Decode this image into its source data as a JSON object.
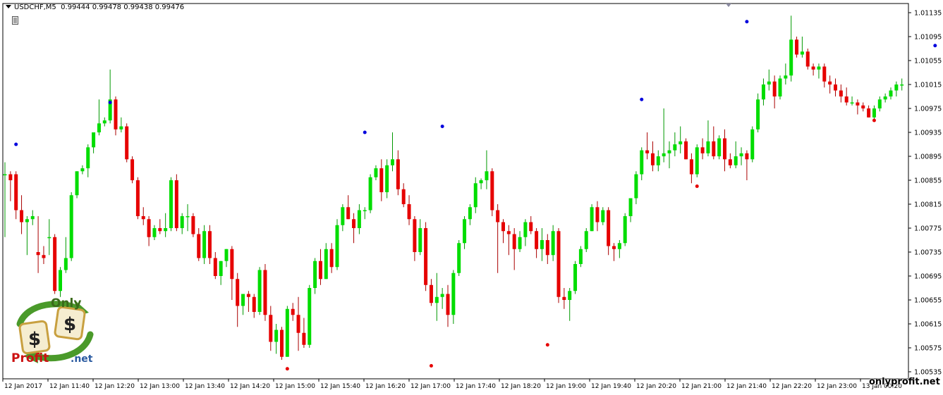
{
  "header": {
    "symbol": "USDCHF,M5",
    "ohlc": "0.99444 0.99478 0.99438 0.99476"
  },
  "watermark": "onlyprofit.net",
  "logo": {
    "text_top": "Only",
    "text_bottom_left": "Profit",
    "text_bottom_right": ".net",
    "symbol": "$"
  },
  "colors": {
    "bull": "#00dd00",
    "bear": "#e60000",
    "fractal_up": "#0000dd",
    "fractal_down": "#e60000",
    "axis": "#000000"
  },
  "chart_data": {
    "type": "candlestick",
    "title": "USDCHF,M5",
    "y_ticks": [
      "1.01135",
      "1.01095",
      "1.01055",
      "1.01015",
      "1.00975",
      "1.00935",
      "1.00895",
      "1.00855",
      "1.00815",
      "1.00775",
      "1.00735",
      "1.00695",
      "1.00655",
      "1.00615",
      "1.00575",
      "1.00535"
    ],
    "x_ticks": [
      "12 Jan 2017",
      "12 Jan 11:40",
      "12 Jan 12:20",
      "12 Jan 13:00",
      "12 Jan 13:40",
      "12 Jan 14:20",
      "12 Jan 15:00",
      "12 Jan 15:40",
      "12 Jan 16:20",
      "12 Jan 17:00",
      "12 Jan 17:40",
      "12 Jan 18:20",
      "12 Jan 19:00",
      "12 Jan 19:40",
      "12 Jan 20:20",
      "12 Jan 21:00",
      "12 Jan 21:40",
      "12 Jan 22:20",
      "12 Jan 23:00",
      "13 Jan 00:20"
    ],
    "ylim": [
      1.00525,
      1.01145
    ],
    "candles": [
      [
        1.00865,
        1.00885,
        1.0076,
        1.00865
      ],
      [
        1.00865,
        1.0087,
        1.0082,
        1.00855
      ],
      [
        1.00865,
        1.0087,
        1.0079,
        1.00805
      ],
      [
        1.00805,
        1.0083,
        1.00765,
        1.00785
      ],
      [
        1.00785,
        1.00795,
        1.0073,
        1.0079
      ],
      [
        1.0079,
        1.00805,
        1.0078,
        1.00795
      ],
      [
        1.00735,
        1.00795,
        1.007,
        1.0073
      ],
      [
        1.0073,
        1.00745,
        1.00715,
        1.00725
      ],
      [
        1.0076,
        1.0079,
        1.0073,
        1.0076
      ],
      [
        1.0076,
        1.00765,
        1.00665,
        1.0067
      ],
      [
        1.0067,
        1.0071,
        1.0066,
        1.00705
      ],
      [
        1.00705,
        1.0076,
        1.007,
        1.00725
      ],
      [
        1.00725,
        1.00835,
        1.0072,
        1.0083
      ],
      [
        1.0083,
        1.0087,
        1.00825,
        1.0087
      ],
      [
        1.0087,
        1.0088,
        1.00865,
        1.00875
      ],
      [
        1.00875,
        1.00915,
        1.0086,
        1.0091
      ],
      [
        1.0091,
        1.00935,
        1.009,
        1.00935
      ],
      [
        1.00935,
        1.0099,
        1.0093,
        1.0095
      ],
      [
        1.0095,
        1.0096,
        1.00945,
        1.00955
      ],
      [
        1.00955,
        1.0104,
        1.0095,
        1.0099
      ],
      [
        1.0099,
        1.00995,
        1.0093,
        1.0094
      ],
      [
        1.0094,
        1.0096,
        1.00935,
        1.00945
      ],
      [
        1.00945,
        1.0095,
        1.00885,
        1.0089
      ],
      [
        1.0089,
        1.00895,
        1.0085,
        1.00855
      ],
      [
        1.00855,
        1.0086,
        1.0079,
        1.00795
      ],
      [
        1.00795,
        1.0081,
        1.0078,
        1.0079
      ],
      [
        1.0079,
        1.00795,
        1.00745,
        1.0076
      ],
      [
        1.0076,
        1.0078,
        1.00755,
        1.00775
      ],
      [
        1.00775,
        1.0079,
        1.00765,
        1.0077
      ],
      [
        1.0077,
        1.008,
        1.0076,
        1.00775
      ],
      [
        1.00775,
        1.0086,
        1.0077,
        1.00855
      ],
      [
        1.00855,
        1.00865,
        1.0077,
        1.00775
      ],
      [
        1.00775,
        1.008,
        1.00765,
        1.00795
      ],
      [
        1.00795,
        1.00815,
        1.0077,
        1.00795
      ],
      [
        1.00795,
        1.008,
        1.0076,
        1.00765
      ],
      [
        1.00765,
        1.00775,
        1.0072,
        1.00725
      ],
      [
        1.00725,
        1.0078,
        1.00715,
        1.0077
      ],
      [
        1.0077,
        1.0078,
        1.00715,
        1.00725
      ],
      [
        1.00725,
        1.00735,
        1.0069,
        1.00695
      ],
      [
        1.00695,
        1.0072,
        1.0068,
        1.0072
      ],
      [
        1.0072,
        1.0074,
        1.0071,
        1.0074
      ],
      [
        1.0074,
        1.00745,
        1.00655,
        1.0069
      ],
      [
        1.0069,
        1.007,
        1.0061,
        1.00645
      ],
      [
        1.00645,
        1.00665,
        1.0063,
        1.00665
      ],
      [
        1.00665,
        1.0067,
        1.00635,
        1.0066
      ],
      [
        1.0066,
        1.00665,
        1.00625,
        1.00635
      ],
      [
        1.00635,
        1.0071,
        1.0063,
        1.00705
      ],
      [
        1.00705,
        1.00715,
        1.0062,
        1.0063
      ],
      [
        1.0063,
        1.00645,
        1.0057,
        1.00585
      ],
      [
        1.00585,
        1.00615,
        1.00565,
        1.00605
      ],
      [
        1.00605,
        1.0061,
        1.00555,
        1.0056
      ],
      [
        1.0056,
        1.00645,
        1.0056,
        1.0064
      ],
      [
        1.0064,
        1.0065,
        1.0062,
        1.0063
      ],
      [
        1.0063,
        1.0066,
        1.0057,
        1.006
      ],
      [
        1.006,
        1.00625,
        1.00575,
        1.0058
      ],
      [
        1.0058,
        1.0068,
        1.00575,
        1.00675
      ],
      [
        1.00675,
        1.00725,
        1.00665,
        1.0072
      ],
      [
        1.0072,
        1.0074,
        1.0068,
        1.0069
      ],
      [
        1.0069,
        1.0075,
        1.0069,
        1.0074
      ],
      [
        1.0074,
        1.0075,
        1.007,
        1.0071
      ],
      [
        1.0071,
        1.0079,
        1.00705,
        1.0078
      ],
      [
        1.0078,
        1.00815,
        1.0077,
        1.0081
      ],
      [
        1.0081,
        1.0083,
        1.0079,
        1.0079
      ],
      [
        1.0079,
        1.008,
        1.0075,
        1.00775
      ],
      [
        1.00775,
        1.00815,
        1.00765,
        1.00805
      ],
      [
        1.00805,
        1.0081,
        1.0079,
        1.00805
      ],
      [
        1.00805,
        1.00865,
        1.008,
        1.0086
      ],
      [
        1.0086,
        1.0088,
        1.00855,
        1.00875
      ],
      [
        1.00875,
        1.0089,
        1.0082,
        1.00835
      ],
      [
        1.00835,
        1.0089,
        1.00825,
        1.0088
      ],
      [
        1.0088,
        1.00935,
        1.0087,
        1.0089
      ],
      [
        1.0089,
        1.00905,
        1.0083,
        1.0084
      ],
      [
        1.0084,
        1.0085,
        1.0081,
        1.00815
      ],
      [
        1.00815,
        1.0083,
        1.0078,
        1.0079
      ],
      [
        1.0079,
        1.00795,
        1.0072,
        1.00735
      ],
      [
        1.00735,
        1.0079,
        1.0073,
        1.00775
      ],
      [
        1.00775,
        1.00785,
        1.0067,
        1.0068
      ],
      [
        1.0068,
        1.0069,
        1.00645,
        1.0065
      ],
      [
        1.0065,
        1.007,
        1.0062,
        1.0066
      ],
      [
        1.0066,
        1.00675,
        1.0064,
        1.00665
      ],
      [
        1.00665,
        1.0068,
        1.0061,
        1.0063
      ],
      [
        1.0063,
        1.00705,
        1.00615,
        1.007
      ],
      [
        1.007,
        1.00755,
        1.00695,
        1.0075
      ],
      [
        1.0075,
        1.00795,
        1.0074,
        1.0079
      ],
      [
        1.0079,
        1.00815,
        1.0078,
        1.0081
      ],
      [
        1.0081,
        1.0086,
        1.008,
        1.0085
      ],
      [
        1.0085,
        1.00858,
        1.0084,
        1.00855
      ],
      [
        1.00855,
        1.00905,
        1.0084,
        1.0087
      ],
      [
        1.0087,
        1.00875,
        1.00795,
        1.00805
      ],
      [
        1.00805,
        1.00815,
        1.007,
        1.00785
      ],
      [
        1.00785,
        1.0079,
        1.0075,
        1.0077
      ],
      [
        1.0077,
        1.0078,
        1.0073,
        1.00765
      ],
      [
        1.00765,
        1.00775,
        1.00705,
        1.0074
      ],
      [
        1.0074,
        1.0077,
        1.00735,
        1.0076
      ],
      [
        1.0076,
        1.0079,
        1.00745,
        1.00785
      ],
      [
        1.00785,
        1.00795,
        1.00765,
        1.0077
      ],
      [
        1.0077,
        1.00775,
        1.00725,
        1.0074
      ],
      [
        1.0074,
        1.00775,
        1.0072,
        1.00755
      ],
      [
        1.00755,
        1.00765,
        1.00715,
        1.0073
      ],
      [
        1.0073,
        1.0078,
        1.0072,
        1.0077
      ],
      [
        1.0077,
        1.00775,
        1.0065,
        1.0066
      ],
      [
        1.0066,
        1.00675,
        1.0064,
        1.00655
      ],
      [
        1.00655,
        1.00675,
        1.0062,
        1.0067
      ],
      [
        1.0067,
        1.0072,
        1.00665,
        1.00715
      ],
      [
        1.00715,
        1.00745,
        1.0071,
        1.0074
      ],
      [
        1.0074,
        1.00775,
        1.00735,
        1.0077
      ],
      [
        1.0077,
        1.00815,
        1.0077,
        1.0081
      ],
      [
        1.0081,
        1.0082,
        1.0077,
        1.00785
      ],
      [
        1.00785,
        1.0081,
        1.0078,
        1.00805
      ],
      [
        1.00805,
        1.0081,
        1.0073,
        1.00745
      ],
      [
        1.00745,
        1.0075,
        1.0072,
        1.0074
      ],
      [
        1.0074,
        1.00755,
        1.00725,
        1.0075
      ],
      [
        1.0075,
        1.008,
        1.00745,
        1.00795
      ],
      [
        1.00795,
        1.00825,
        1.00785,
        1.00825
      ],
      [
        1.00825,
        1.0087,
        1.00815,
        1.00865
      ],
      [
        1.00865,
        1.0091,
        1.00855,
        1.00905
      ],
      [
        1.00905,
        1.00935,
        1.0089,
        1.009
      ],
      [
        1.009,
        1.0092,
        1.0087,
        1.0088
      ],
      [
        1.0088,
        1.00905,
        1.0087,
        1.00895
      ],
      [
        1.00895,
        1.00975,
        1.00885,
        1.009
      ],
      [
        1.009,
        1.0092,
        1.00875,
        1.00905
      ],
      [
        1.00905,
        1.00935,
        1.00895,
        1.00915
      ],
      [
        1.00915,
        1.00945,
        1.009,
        1.0092
      ],
      [
        1.0092,
        1.00925,
        1.0089,
        1.0089
      ],
      [
        1.0089,
        1.009,
        1.0085,
        1.00865
      ],
      [
        1.00865,
        1.00915,
        1.0086,
        1.0091
      ],
      [
        1.0091,
        1.00925,
        1.0089,
        1.009
      ],
      [
        1.009,
        1.00955,
        1.00895,
        1.0092
      ],
      [
        1.0092,
        1.00945,
        1.0089,
        1.00895
      ],
      [
        1.00895,
        1.0093,
        1.0089,
        1.00925
      ],
      [
        1.00925,
        1.0094,
        1.0087,
        1.0089
      ],
      [
        1.0089,
        1.009,
        1.00875,
        1.0088
      ],
      [
        1.0088,
        1.0092,
        1.00875,
        1.00895
      ],
      [
        1.00895,
        1.0091,
        1.0088,
        1.009
      ],
      [
        1.009,
        1.00905,
        1.00855,
        1.0089
      ],
      [
        1.0089,
        1.00945,
        1.00885,
        1.0094
      ],
      [
        1.0094,
        1.01,
        1.00935,
        1.0099
      ],
      [
        1.0099,
        1.01025,
        1.0098,
        1.01015
      ],
      [
        1.01015,
        1.0104,
        1.01005,
        1.0102
      ],
      [
        1.0102,
        1.0103,
        1.00975,
        1.00995
      ],
      [
        1.00995,
        1.0103,
        1.0099,
        1.01025
      ],
      [
        1.01025,
        1.0105,
        1.01015,
        1.0103
      ],
      [
        1.0103,
        1.0113,
        1.0102,
        1.0109
      ],
      [
        1.0109,
        1.01095,
        1.0106,
        1.01065
      ],
      [
        1.01065,
        1.01095,
        1.0106,
        1.0107
      ],
      [
        1.0107,
        1.01075,
        1.0104,
        1.01045
      ],
      [
        1.01045,
        1.0105,
        1.0103,
        1.0104
      ],
      [
        1.0104,
        1.0105,
        1.01025,
        1.01045
      ],
      [
        1.01045,
        1.0105,
        1.0101,
        1.0102
      ],
      [
        1.0102,
        1.0103,
        1.01,
        1.01015
      ],
      [
        1.01015,
        1.01025,
        1.00995,
        1.01005
      ],
      [
        1.01005,
        1.01015,
        1.00985,
        1.00995
      ],
      [
        1.00995,
        1.0101,
        1.0098,
        1.00985
      ],
      [
        1.00985,
        1.00995,
        1.0098,
        1.00985
      ],
      [
        1.00985,
        1.0099,
        1.00965,
        1.0098
      ],
      [
        1.0098,
        1.00985,
        1.0097,
        1.00975
      ],
      [
        1.00975,
        1.0098,
        1.0096,
        1.0096
      ],
      [
        1.0096,
        1.0098,
        1.00955,
        1.00975
      ],
      [
        1.00975,
        1.00995,
        1.0097,
        1.0099
      ],
      [
        1.0099,
        1.01,
        1.00985,
        1.00995
      ],
      [
        1.00995,
        1.0101,
        1.0099,
        1.01005
      ],
      [
        1.01005,
        1.0102,
        1.00995,
        1.01015
      ],
      [
        1.01015,
        1.01025,
        1.01005,
        1.01015
      ],
      [
        1.01015,
        1.01055,
        1.0101,
        1.0105
      ],
      [
        1.0105,
        1.0107,
        1.0104,
        1.01065
      ],
      [
        1.01065,
        1.0107,
        1.01045,
        1.0105
      ],
      [
        1.0105,
        1.0106,
        1.0104,
        1.01045
      ],
      [
        1.01045,
        1.0107,
        1.01015,
        1.0106
      ],
      [
        1.0106,
        1.01065,
        1.0104,
        1.01045
      ],
      [
        1.01045,
        1.01055,
        1.0104,
        1.0105
      ],
      [
        1.0105,
        1.0109,
        1.0101,
        1.0102
      ]
    ],
    "fractals_up": [
      [
        2,
        1.00915
      ],
      [
        19,
        1.00985
      ],
      [
        65,
        1.00935
      ],
      [
        79,
        1.00945
      ],
      [
        115,
        1.0099
      ],
      [
        134,
        1.0112
      ],
      [
        168,
        1.0108
      ]
    ],
    "fractals_down": [
      [
        51,
        1.0054
      ],
      [
        77,
        1.00545
      ],
      [
        98,
        1.0058
      ],
      [
        125,
        1.00845
      ],
      [
        157,
        1.00955
      ]
    ]
  }
}
